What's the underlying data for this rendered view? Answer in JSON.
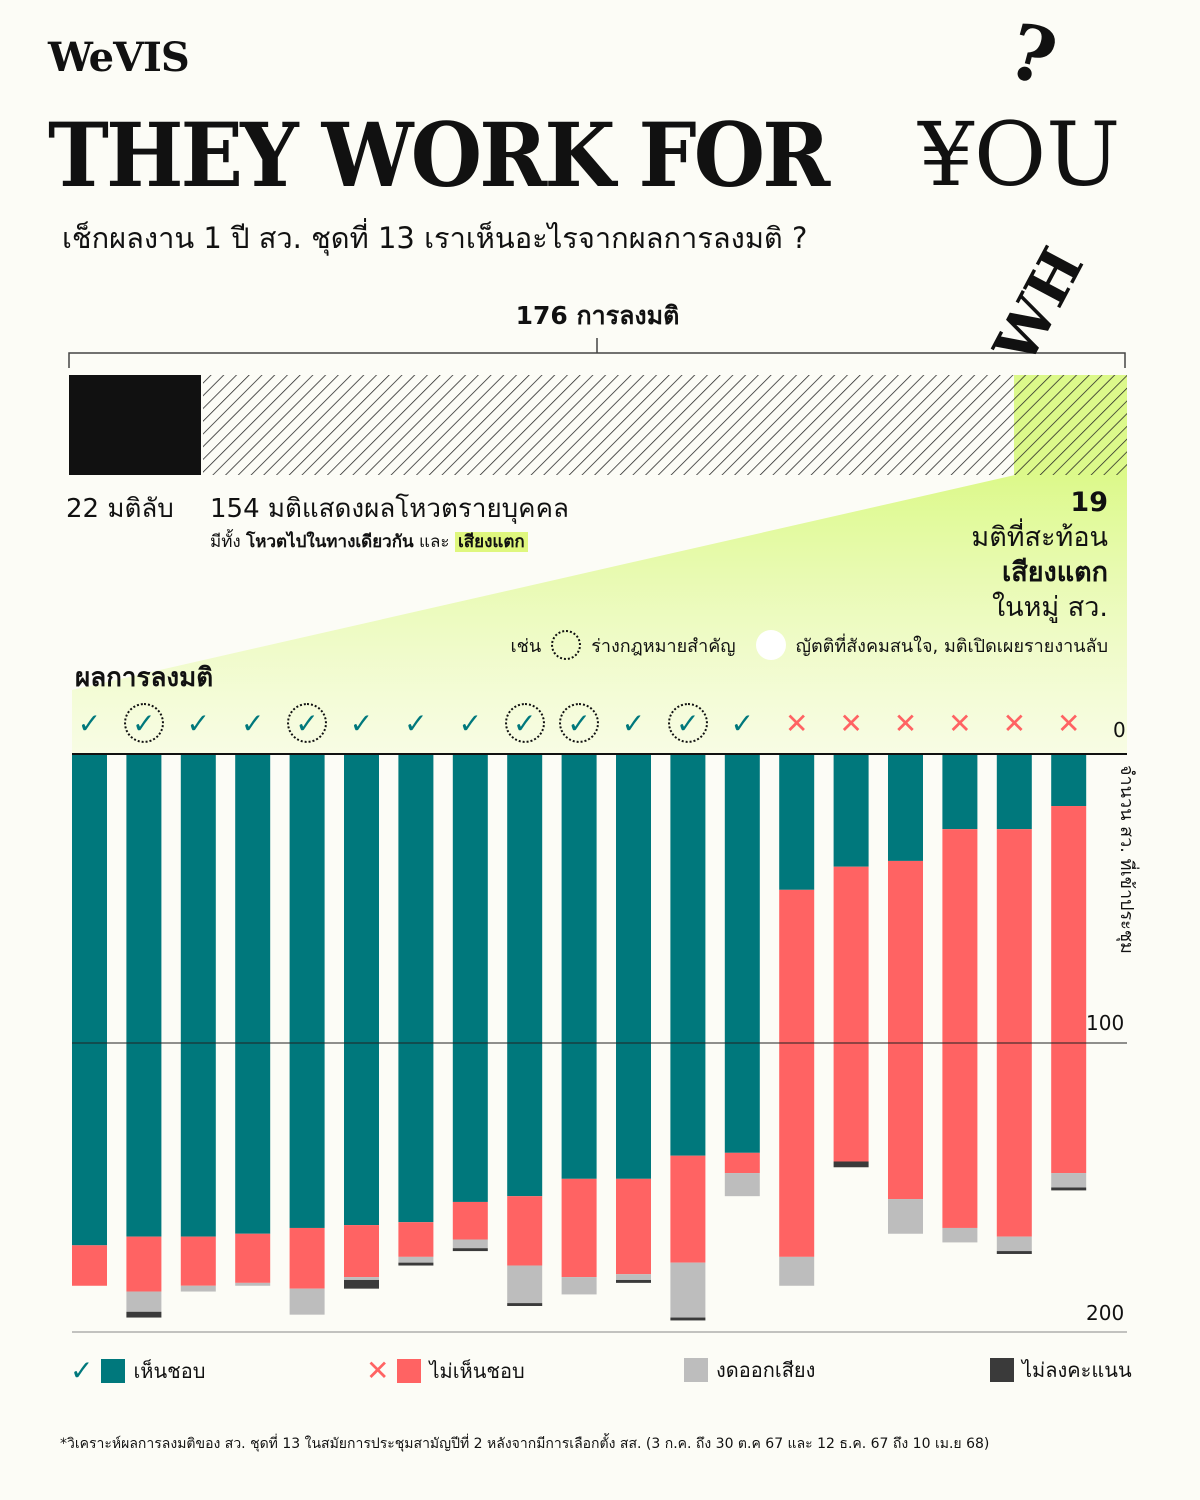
{
  "logo": "WeVIS",
  "title": {
    "main": "THEY WORK FOR",
    "you": "¥OU",
    "who": "WH",
    "q": "?"
  },
  "subtitle": "เช็กผลงาน 1 ปี สว. ชุดที่ 13 เราเห็นอะไรจากผลการลงมติ ?",
  "overview": {
    "total": "176 การลงมติ",
    "secret": "22 มติลับ",
    "individual": "154 มติแสดงผลโหวตรายบุคคล",
    "individual_sub_pre": "มีทั้ง ",
    "individual_sub_bold": "โหวตไปในทางเดียวกัน",
    "individual_sub_mid": " และ ",
    "individual_sub_hl": "เสียงแตก",
    "split_count": "19",
    "split_l1": "มติที่สะท้อน",
    "split_l2": "เสียงแตก",
    "split_l3": "ในหมู่ สว.",
    "eg": "เช่น",
    "eg_bill": "ร่างกฎหมายสำคัญ",
    "eg_other": "ญัตติที่สังคมสนใจ, มติเปิดเผยรายงานลับ"
  },
  "colors": {
    "agree": "#00787c",
    "disagree": "#ff6363",
    "abstain": "#bdbdbd",
    "novote": "#3a3a3a",
    "highlight": "#dff77e"
  },
  "chart_data": {
    "type": "bar",
    "stacked": true,
    "title": "ผลการลงมติ",
    "ylabel": "จำนวน สว. ที่เข้าประชุม",
    "ylim": [
      0,
      200
    ],
    "yticks": [
      "0",
      "100",
      "200"
    ],
    "results": [
      "pass",
      "pass",
      "pass",
      "pass",
      "pass",
      "pass",
      "pass",
      "pass",
      "pass",
      "pass",
      "pass",
      "pass",
      "pass",
      "fail",
      "fail",
      "fail",
      "fail",
      "fail",
      "fail"
    ],
    "important_bill": [
      false,
      true,
      false,
      false,
      true,
      false,
      false,
      false,
      true,
      true,
      false,
      true,
      false,
      false,
      false,
      false,
      false,
      false,
      false
    ],
    "series": [
      {
        "name": "เห็นชอบ",
        "key": "agree",
        "values": [
          170,
          167,
          167,
          166,
          164,
          163,
          162,
          155,
          153,
          147,
          147,
          139,
          138,
          47,
          39,
          37,
          26,
          26,
          18
        ]
      },
      {
        "name": "ไม่เห็นชอบ",
        "key": "disagree",
        "values": [
          14,
          19,
          17,
          17,
          21,
          18,
          12,
          13,
          24,
          34,
          33,
          37,
          7,
          127,
          102,
          117,
          138,
          141,
          127
        ]
      },
      {
        "name": "งดออกเสียง",
        "key": "abstain",
        "values": [
          0,
          7,
          2,
          1,
          9,
          1,
          2,
          3,
          13,
          6,
          2,
          19,
          8,
          10,
          0,
          12,
          5,
          5,
          5
        ]
      },
      {
        "name": "ไม่ลงคะแนน",
        "key": "novote",
        "values": [
          0,
          2,
          0,
          0,
          0,
          3,
          1,
          1,
          1,
          0,
          1,
          1,
          0,
          0,
          2,
          0,
          0,
          1,
          1
        ]
      }
    ]
  },
  "footnote": "*วิเคราะห์ผลการลงมติของ สว. ชุดที่ 13 ในสมัยการประชุมสามัญปีที่ 2 หลังจากมีการเลือกตั้ง สส. (3 ก.ค. ถึง 30 ต.ค 67 และ 12 ธ.ค. 67 ถึง 10 เม.ย 68)"
}
